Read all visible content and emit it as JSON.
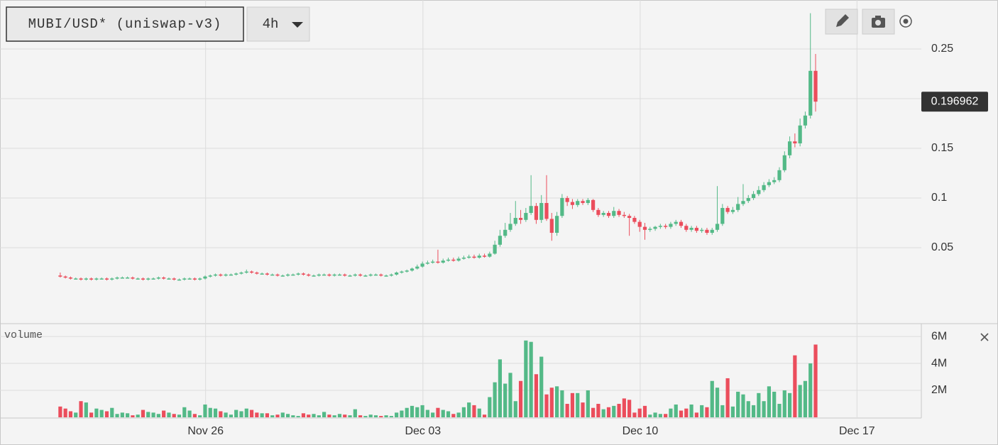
{
  "chart_data": {
    "type": "candlestick",
    "title": "MUBI/USD* (uniswap-v3)",
    "interval": "4h",
    "volume_label": "volume",
    "up_color": "#53b987",
    "down_color": "#eb4d5c",
    "grid": true,
    "last_price": 0.196962,
    "xlim": [
      -11.644,
      166.44
    ],
    "xticks": [
      {
        "value": 28.1,
        "label": "Nov 26"
      },
      {
        "value": 70.1,
        "label": "Dec 03"
      },
      {
        "value": 112.1,
        "label": "Dec 10"
      },
      {
        "value": 154.0,
        "label": "Dec 17"
      }
    ],
    "ylim": [
      -0.0257,
      0.2993
    ],
    "yticks": [
      0.05,
      0.1,
      0.15,
      0.2,
      0.25
    ],
    "volume_ylim": [
      0,
      6900000
    ],
    "volume_yticks": [
      {
        "value": 2000000,
        "label": "2M"
      },
      {
        "value": 4000000,
        "label": "4M"
      },
      {
        "value": 6000000,
        "label": "6M"
      }
    ],
    "open": [
      0.022,
      0.021,
      0.02,
      0.019,
      0.019,
      0.018,
      0.019,
      0.018,
      0.019,
      0.019,
      0.018,
      0.019,
      0.02,
      0.02,
      0.02,
      0.019,
      0.019,
      0.018,
      0.019,
      0.019,
      0.02,
      0.019,
      0.019,
      0.018,
      0.018,
      0.019,
      0.019,
      0.018,
      0.019,
      0.021,
      0.022,
      0.023,
      0.022,
      0.023,
      0.023,
      0.024,
      0.025,
      0.026,
      0.025,
      0.024,
      0.024,
      0.023,
      0.023,
      0.022,
      0.022,
      0.023,
      0.023,
      0.024,
      0.023,
      0.022,
      0.022,
      0.023,
      0.023,
      0.022,
      0.023,
      0.023,
      0.022,
      0.022,
      0.023,
      0.022,
      0.022,
      0.023,
      0.023,
      0.022,
      0.022,
      0.023,
      0.025,
      0.026,
      0.027,
      0.029,
      0.031,
      0.034,
      0.035,
      0.036,
      0.035,
      0.037,
      0.038,
      0.037,
      0.039,
      0.04,
      0.041,
      0.04,
      0.042,
      0.041,
      0.044,
      0.053,
      0.062,
      0.068,
      0.074,
      0.08,
      0.078,
      0.085,
      0.092,
      0.078,
      0.095,
      0.079,
      0.065,
      0.082,
      0.1,
      0.096,
      0.093,
      0.097,
      0.095,
      0.098,
      0.088,
      0.083,
      0.085,
      0.082,
      0.087,
      0.083,
      0.082,
      0.08,
      0.076,
      0.071,
      0.068,
      0.069,
      0.071,
      0.072,
      0.071,
      0.074,
      0.076,
      0.072,
      0.068,
      0.07,
      0.067,
      0.068,
      0.065,
      0.068,
      0.074,
      0.09,
      0.086,
      0.088,
      0.094,
      0.097,
      0.1,
      0.104,
      0.108,
      0.113,
      0.116,
      0.118,
      0.128,
      0.143,
      0.157,
      0.155,
      0.173,
      0.183,
      0.228
    ],
    "high": [
      0.025,
      0.022,
      0.021,
      0.02,
      0.02,
      0.02,
      0.02,
      0.02,
      0.02,
      0.02,
      0.02,
      0.021,
      0.021,
      0.021,
      0.021,
      0.02,
      0.02,
      0.02,
      0.02,
      0.021,
      0.021,
      0.02,
      0.02,
      0.019,
      0.02,
      0.02,
      0.02,
      0.02,
      0.022,
      0.023,
      0.024,
      0.024,
      0.024,
      0.024,
      0.025,
      0.026,
      0.028,
      0.027,
      0.026,
      0.025,
      0.025,
      0.024,
      0.024,
      0.023,
      0.024,
      0.024,
      0.025,
      0.025,
      0.024,
      0.023,
      0.024,
      0.024,
      0.024,
      0.024,
      0.024,
      0.024,
      0.023,
      0.024,
      0.024,
      0.023,
      0.024,
      0.024,
      0.024,
      0.023,
      0.024,
      0.026,
      0.027,
      0.028,
      0.03,
      0.033,
      0.036,
      0.037,
      0.038,
      0.048,
      0.039,
      0.04,
      0.04,
      0.041,
      0.042,
      0.043,
      0.043,
      0.044,
      0.044,
      0.046,
      0.057,
      0.068,
      0.075,
      0.085,
      0.097,
      0.088,
      0.09,
      0.123,
      0.095,
      0.103,
      0.123,
      0.085,
      0.086,
      0.104,
      0.102,
      0.099,
      0.099,
      0.099,
      0.1,
      0.099,
      0.09,
      0.087,
      0.087,
      0.091,
      0.089,
      0.086,
      0.084,
      0.082,
      0.078,
      0.075,
      0.071,
      0.072,
      0.074,
      0.074,
      0.076,
      0.078,
      0.078,
      0.074,
      0.072,
      0.072,
      0.07,
      0.07,
      0.07,
      0.112,
      0.094,
      0.092,
      0.091,
      0.101,
      0.114,
      0.103,
      0.107,
      0.112,
      0.116,
      0.119,
      0.121,
      0.131,
      0.147,
      0.162,
      0.165,
      0.18,
      0.187,
      0.286,
      0.245
    ],
    "low": [
      0.02,
      0.019,
      0.018,
      0.018,
      0.017,
      0.017,
      0.017,
      0.017,
      0.018,
      0.017,
      0.017,
      0.018,
      0.019,
      0.019,
      0.018,
      0.018,
      0.017,
      0.017,
      0.018,
      0.018,
      0.018,
      0.018,
      0.017,
      0.017,
      0.017,
      0.018,
      0.017,
      0.017,
      0.018,
      0.02,
      0.021,
      0.021,
      0.021,
      0.022,
      0.022,
      0.023,
      0.024,
      0.024,
      0.023,
      0.023,
      0.022,
      0.022,
      0.021,
      0.021,
      0.021,
      0.022,
      0.022,
      0.022,
      0.021,
      0.021,
      0.021,
      0.022,
      0.021,
      0.021,
      0.022,
      0.021,
      0.021,
      0.021,
      0.021,
      0.021,
      0.021,
      0.022,
      0.021,
      0.021,
      0.021,
      0.022,
      0.024,
      0.025,
      0.026,
      0.028,
      0.03,
      0.033,
      0.034,
      0.034,
      0.034,
      0.036,
      0.036,
      0.036,
      0.038,
      0.039,
      0.039,
      0.039,
      0.04,
      0.04,
      0.043,
      0.051,
      0.06,
      0.066,
      0.072,
      0.074,
      0.076,
      0.083,
      0.074,
      0.075,
      0.077,
      0.057,
      0.062,
      0.08,
      0.092,
      0.089,
      0.091,
      0.093,
      0.093,
      0.086,
      0.081,
      0.081,
      0.08,
      0.08,
      0.081,
      0.08,
      0.062,
      0.074,
      0.066,
      0.058,
      0.066,
      0.067,
      0.069,
      0.069,
      0.069,
      0.072,
      0.07,
      0.066,
      0.066,
      0.065,
      0.065,
      0.063,
      0.063,
      0.066,
      0.072,
      0.084,
      0.084,
      0.086,
      0.092,
      0.095,
      0.098,
      0.102,
      0.106,
      0.111,
      0.114,
      0.116,
      0.126,
      0.14,
      0.151,
      0.152,
      0.17,
      0.18,
      0.187
    ],
    "close": [
      0.021,
      0.02,
      0.019,
      0.019,
      0.018,
      0.019,
      0.018,
      0.019,
      0.019,
      0.018,
      0.019,
      0.02,
      0.02,
      0.02,
      0.019,
      0.019,
      0.018,
      0.019,
      0.019,
      0.02,
      0.019,
      0.019,
      0.018,
      0.018,
      0.019,
      0.019,
      0.018,
      0.019,
      0.021,
      0.022,
      0.023,
      0.022,
      0.023,
      0.023,
      0.024,
      0.025,
      0.026,
      0.025,
      0.024,
      0.024,
      0.023,
      0.023,
      0.022,
      0.022,
      0.023,
      0.023,
      0.024,
      0.023,
      0.022,
      0.022,
      0.023,
      0.023,
      0.022,
      0.023,
      0.023,
      0.022,
      0.022,
      0.023,
      0.022,
      0.022,
      0.023,
      0.023,
      0.022,
      0.022,
      0.023,
      0.025,
      0.026,
      0.027,
      0.029,
      0.031,
      0.034,
      0.035,
      0.036,
      0.035,
      0.037,
      0.038,
      0.037,
      0.039,
      0.04,
      0.041,
      0.04,
      0.042,
      0.041,
      0.044,
      0.053,
      0.062,
      0.068,
      0.074,
      0.08,
      0.078,
      0.085,
      0.092,
      0.078,
      0.095,
      0.079,
      0.065,
      0.082,
      0.1,
      0.096,
      0.093,
      0.097,
      0.095,
      0.098,
      0.088,
      0.083,
      0.085,
      0.082,
      0.087,
      0.083,
      0.082,
      0.08,
      0.076,
      0.071,
      0.068,
      0.069,
      0.071,
      0.072,
      0.071,
      0.074,
      0.076,
      0.072,
      0.068,
      0.07,
      0.067,
      0.068,
      0.065,
      0.068,
      0.074,
      0.09,
      0.086,
      0.088,
      0.094,
      0.097,
      0.1,
      0.104,
      0.108,
      0.113,
      0.116,
      0.118,
      0.128,
      0.143,
      0.157,
      0.155,
      0.173,
      0.183,
      0.228,
      0.197
    ],
    "volume": [
      800000,
      650000,
      450000,
      350000,
      1200000,
      1100000,
      350000,
      650000,
      550000,
      450000,
      700000,
      250000,
      350000,
      300000,
      150000,
      200000,
      550000,
      400000,
      350000,
      250000,
      500000,
      350000,
      250000,
      200000,
      750000,
      500000,
      250000,
      150000,
      950000,
      700000,
      650000,
      450000,
      350000,
      200000,
      550000,
      450000,
      650000,
      550000,
      350000,
      300000,
      300000,
      150000,
      200000,
      350000,
      250000,
      150000,
      100000,
      300000,
      200000,
      250000,
      150000,
      400000,
      200000,
      150000,
      250000,
      200000,
      150000,
      600000,
      150000,
      100000,
      200000,
      150000,
      100000,
      150000,
      100000,
      350000,
      500000,
      700000,
      850000,
      750000,
      900000,
      550000,
      350000,
      700000,
      550000,
      450000,
      250000,
      350000,
      750000,
      1100000,
      900000,
      650000,
      200000,
      1500000,
      2600000,
      4300000,
      2500000,
      3300000,
      1200000,
      2700000,
      5700000,
      5600000,
      3200000,
      4500000,
      1700000,
      2200000,
      2300000,
      2000000,
      1000000,
      1800000,
      1800000,
      1100000,
      2000000,
      700000,
      1000000,
      600000,
      750000,
      850000,
      1000000,
      1400000,
      1300000,
      350000,
      650000,
      850000,
      200000,
      350000,
      250000,
      250000,
      650000,
      950000,
      500000,
      650000,
      950000,
      350000,
      900000,
      750000,
      2700000,
      2200000,
      900000,
      2900000,
      800000,
      1900000,
      1700000,
      1200000,
      900000,
      1800000,
      1200000,
      2300000,
      1900000,
      1000000,
      2000000,
      1800000,
      4600000,
      2400000,
      2700000,
      4000000,
      5400000
    ]
  }
}
